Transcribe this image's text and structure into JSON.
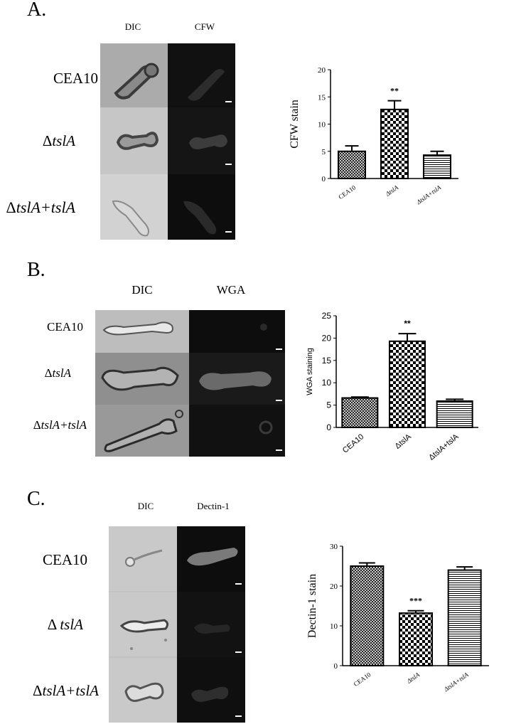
{
  "figure": {
    "panels": [
      {
        "letter": "A.",
        "col_labels": [
          "DIC",
          "CFW"
        ],
        "row_labels": [
          {
            "prefix": "",
            "main": "CEA10",
            "suffix": ""
          },
          {
            "prefix": "Δ",
            "main": "tslA",
            "suffix": ""
          },
          {
            "prefix": "Δ",
            "main": "tslA+tslA",
            "suffix": ""
          }
        ]
      },
      {
        "letter": "B.",
        "col_labels": [
          "DIC",
          "WGA"
        ],
        "row_labels": [
          {
            "prefix": "",
            "main": "CEA10",
            "suffix": ""
          },
          {
            "prefix": "Δ",
            "main": "tslA",
            "suffix": ""
          },
          {
            "prefix": "Δ",
            "main": "tslA+tslA",
            "suffix": ""
          }
        ]
      },
      {
        "letter": "C.",
        "col_labels": [
          "DIC",
          "Dectin-1"
        ],
        "row_labels": [
          {
            "prefix": "",
            "main": "CEA10",
            "suffix": ""
          },
          {
            "prefix": "Δ ",
            "main": "tslA",
            "suffix": ""
          },
          {
            "prefix": "Δ",
            "main": "tslA+tslA",
            "suffix": ""
          }
        ]
      }
    ]
  },
  "chart_data": [
    {
      "type": "bar",
      "panel": "A",
      "categories": [
        "CEA10",
        "ΔtslA",
        "ΔtslA+tslA"
      ],
      "values": [
        5.0,
        12.7,
        4.3
      ],
      "errors": [
        1.0,
        1.6,
        0.7
      ],
      "ylabel": "CFW stain",
      "ylim": [
        0,
        20
      ],
      "yticks": [
        0,
        5,
        10,
        15,
        20
      ],
      "significance": [
        "",
        "**",
        ""
      ],
      "patterns": [
        "crosshatch",
        "checker",
        "horizontal-lines"
      ]
    },
    {
      "type": "bar",
      "panel": "B",
      "categories": [
        "CEA10",
        "ΔtslA",
        "ΔtslA+tslA"
      ],
      "values": [
        6.6,
        19.3,
        5.9
      ],
      "errors": [
        0.2,
        1.7,
        0.4
      ],
      "ylabel": "WGA staining",
      "ylim": [
        0,
        25
      ],
      "yticks": [
        0,
        5,
        10,
        15,
        20,
        25
      ],
      "significance": [
        "",
        "**",
        ""
      ],
      "patterns": [
        "crosshatch",
        "checker",
        "horizontal-lines"
      ]
    },
    {
      "type": "bar",
      "panel": "C",
      "categories": [
        "CEA10",
        "ΔtslA",
        "ΔtslA+tslA"
      ],
      "values": [
        25.0,
        13.2,
        24.0
      ],
      "errors": [
        0.8,
        0.6,
        0.8
      ],
      "ylabel": "Dectin-1 stain",
      "ylim": [
        0,
        30
      ],
      "yticks": [
        0,
        10,
        20,
        30
      ],
      "significance": [
        "",
        "***",
        ""
      ],
      "patterns": [
        "crosshatch",
        "checker",
        "horizontal-lines"
      ]
    }
  ],
  "colors": {
    "dic_light": "#c8c8c8",
    "dic_mid": "#a9a9a9",
    "fluor_bg": "#0c0c0c",
    "bar_edge": "#000000"
  }
}
